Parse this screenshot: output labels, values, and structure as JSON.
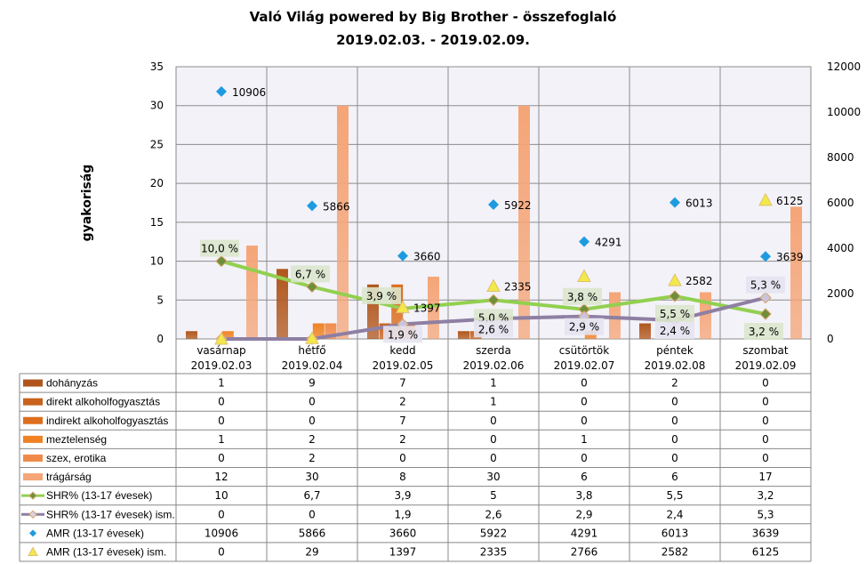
{
  "chart_data": {
    "type": "bar",
    "title": "Való Világ powered by Big Brother - összefoglaló",
    "subtitle": "2019.02.03. - 2019.02.09.",
    "ylabel": "gyakoriság",
    "ylim": [
      0,
      35
    ],
    "y_ticks": [
      0,
      5,
      10,
      15,
      20,
      25,
      30,
      35
    ],
    "y2lim": [
      0,
      12000
    ],
    "y2_ticks": [
      0,
      2000,
      4000,
      6000,
      8000,
      10000,
      12000
    ],
    "grid": true,
    "legend": "data-table",
    "categories": [
      "vasárnap",
      "hétfő",
      "kedd",
      "szerda",
      "csütörtök",
      "péntek",
      "szombat"
    ],
    "dates": [
      "2019.02.03",
      "2019.02.04",
      "2019.02.05",
      "2019.02.06",
      "2019.02.07",
      "2019.02.08",
      "2019.02.09"
    ],
    "series": [
      {
        "name": "dohányzás",
        "type": "bar",
        "axis": "left",
        "color": "#b0561c",
        "values": [
          1,
          9,
          7,
          1,
          0,
          2,
          0
        ]
      },
      {
        "name": "direkt alkoholfogyasztás",
        "type": "bar",
        "axis": "left",
        "color": "#c8621c",
        "values": [
          0,
          0,
          2,
          1,
          0,
          0,
          0
        ]
      },
      {
        "name": "indirekt alkoholfogyasztás",
        "type": "bar",
        "axis": "left",
        "color": "#dc6e1e",
        "values": [
          0,
          0,
          7,
          0,
          0,
          0,
          0
        ]
      },
      {
        "name": "meztelenség",
        "type": "bar",
        "axis": "left",
        "color": "#f08224",
        "values": [
          1,
          2,
          2,
          0,
          1,
          0,
          0
        ]
      },
      {
        "name": "szex, erotika",
        "type": "bar",
        "axis": "left",
        "color": "#f08a4a",
        "values": [
          0,
          2,
          0,
          0,
          0,
          0,
          0
        ]
      },
      {
        "name": "trágárság",
        "type": "bar",
        "axis": "left",
        "color": "#f5a577",
        "values": [
          12,
          30,
          8,
          30,
          6,
          6,
          17
        ]
      },
      {
        "name": "SHR% (13-17 évesek)",
        "type": "line",
        "axis": "left",
        "color": "#92d050",
        "values": [
          10,
          6.7,
          3.9,
          5,
          3.8,
          5.5,
          3.2
        ],
        "labels": [
          "10,0 %",
          "6,7 %",
          "3,9 %",
          "5,0 %",
          "3,8 %",
          "5,5 %",
          "3,2 %"
        ]
      },
      {
        "name": "SHR% (13-17 évesek) ism.",
        "type": "line",
        "axis": "left",
        "color": "#8e7fa3",
        "values": [
          0,
          0,
          1.9,
          2.6,
          2.9,
          2.4,
          5.3
        ],
        "labels": [
          "",
          "",
          "1,9 %",
          "2,6 %",
          "2,9 %",
          "2,4 %",
          "5,3 %"
        ]
      },
      {
        "name": "AMR (13-17 évesek)",
        "type": "scatter",
        "axis": "right",
        "color": "#1e9be0",
        "values": [
          10906,
          5866,
          3660,
          5922,
          4291,
          6013,
          3639
        ],
        "labels": [
          "10906",
          "5866",
          "3660",
          "5922",
          "4291",
          "6013",
          "3639"
        ]
      },
      {
        "name": "AMR (13-17 évesek) ism.",
        "type": "scatter",
        "axis": "right",
        "color": "#f3e84a",
        "values": [
          0,
          29,
          1397,
          2335,
          2766,
          2582,
          6125
        ],
        "labels": [
          "",
          "",
          "1397",
          "2335",
          "",
          "2582",
          "6125"
        ]
      }
    ],
    "table_values": [
      [
        "1",
        "9",
        "7",
        "1",
        "0",
        "2",
        "0"
      ],
      [
        "0",
        "0",
        "2",
        "1",
        "0",
        "0",
        "0"
      ],
      [
        "0",
        "0",
        "7",
        "0",
        "0",
        "0",
        "0"
      ],
      [
        "1",
        "2",
        "2",
        "0",
        "1",
        "0",
        "0"
      ],
      [
        "0",
        "2",
        "0",
        "0",
        "0",
        "0",
        "0"
      ],
      [
        "12",
        "30",
        "8",
        "30",
        "6",
        "6",
        "17"
      ],
      [
        "10",
        "6,7",
        "3,9",
        "5",
        "3,8",
        "5,5",
        "3,2"
      ],
      [
        "0",
        "0",
        "1,9",
        "2,6",
        "2,9",
        "2,4",
        "5,3"
      ],
      [
        "10906",
        "5866",
        "3660",
        "5922",
        "4291",
        "6013",
        "3639"
      ],
      [
        "0",
        "29",
        "1397",
        "2335",
        "2766",
        "2582",
        "6125"
      ]
    ]
  }
}
